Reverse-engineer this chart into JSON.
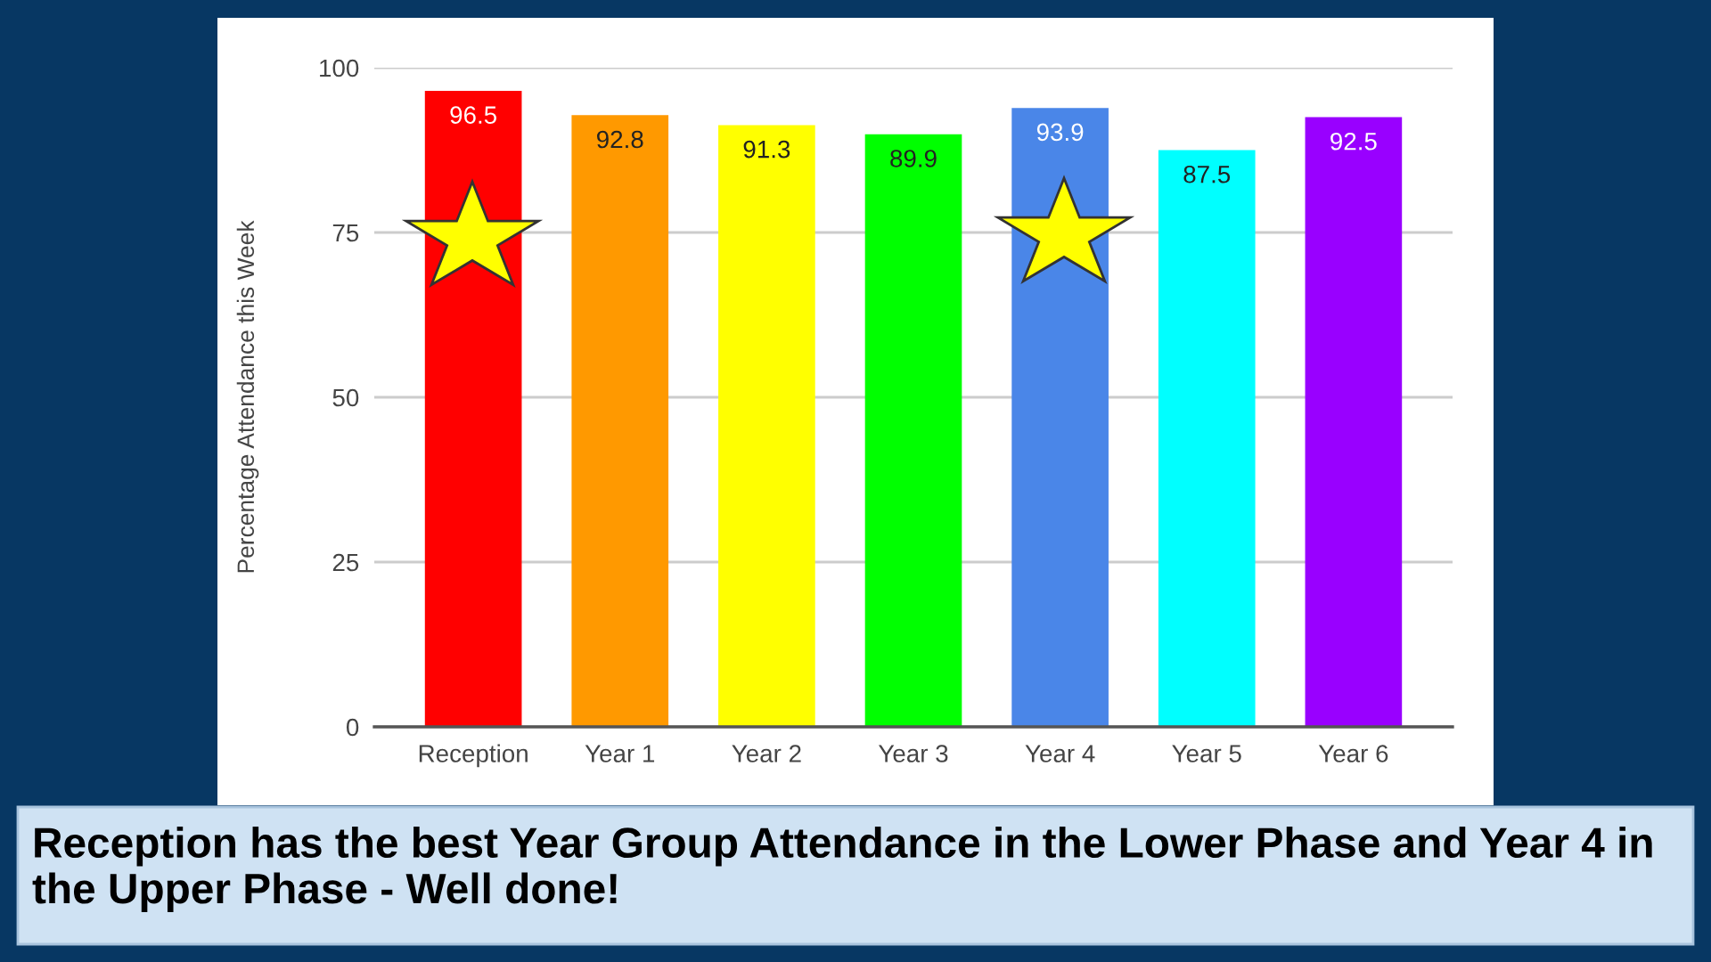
{
  "chart_data": {
    "type": "bar",
    "ylabel": "Percentage Attendance this Week",
    "categories": [
      "Reception",
      "Year 1",
      "Year 2",
      "Year 3",
      "Year 4",
      "Year 5",
      "Year 6"
    ],
    "values": [
      96.5,
      92.8,
      91.3,
      89.9,
      93.9,
      87.5,
      92.5
    ],
    "colors": [
      "#ff0000",
      "#ff9900",
      "#ffff00",
      "#00ff00",
      "#4a86e8",
      "#00ffff",
      "#9900ff"
    ],
    "ylim": [
      0,
      100
    ],
    "yticks": [
      0,
      25,
      50,
      75,
      100
    ],
    "grid": "y",
    "data_labels": true,
    "annotations": [
      "Reception has the best Year Group Attendance in the Lower Phase and Year 4 in the Upper Phase - Well done!"
    ]
  }
}
